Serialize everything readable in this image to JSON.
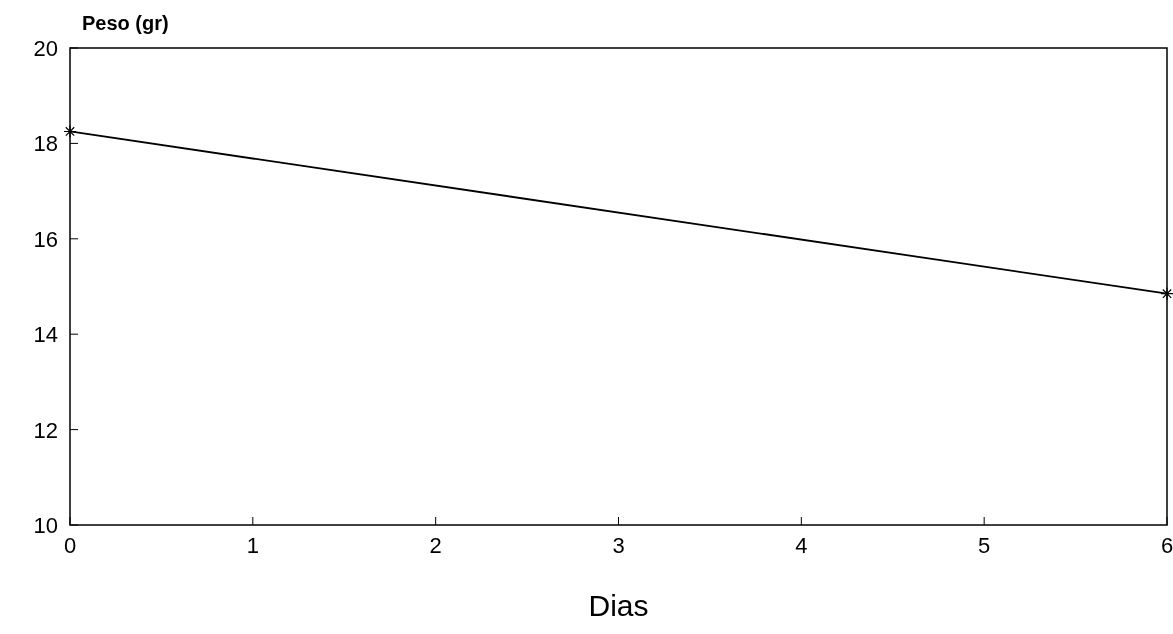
{
  "chart_data": {
    "type": "line",
    "ylabel": "Peso (gr)",
    "xlabel": "Dias",
    "x": [
      0,
      6
    ],
    "series": [
      {
        "color": "#000000",
        "values": [
          18.25,
          14.85
        ]
      }
    ],
    "xlim": [
      0,
      6
    ],
    "xticks": [
      0,
      1,
      2,
      3,
      4,
      5,
      6
    ],
    "ylim": [
      10,
      20
    ],
    "yticks": [
      10,
      12,
      14,
      16,
      18,
      20
    ],
    "marker": "cross",
    "grid": false
  }
}
